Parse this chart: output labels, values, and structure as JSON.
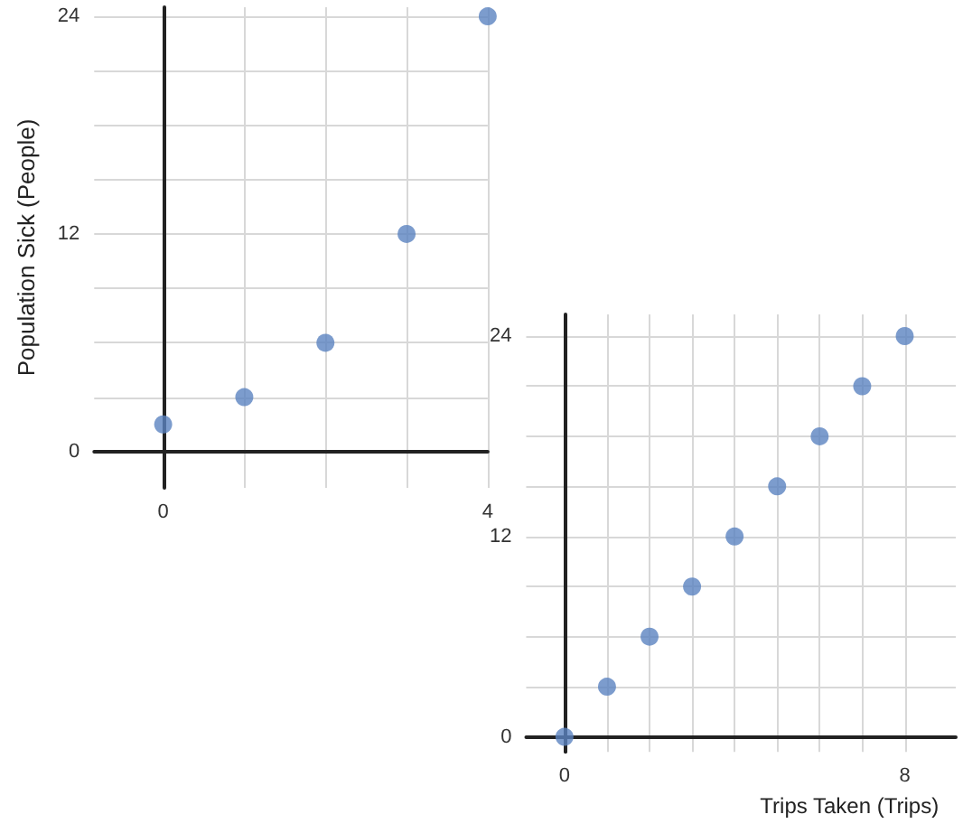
{
  "chart_data": [
    {
      "type": "scatter",
      "ylabel": "Population Sick (People)",
      "x": [
        0,
        1,
        2,
        3,
        4
      ],
      "values": [
        1.5,
        3,
        6,
        12,
        24
      ],
      "color": "#5b83c0",
      "xlim": [
        -0.85,
        4
      ],
      "ylim": [
        -2,
        24.5
      ],
      "xticks": [
        0,
        {
          "value": 1,
          "label": null
        },
        {
          "value": 2,
          "label": null
        },
        {
          "value": 3,
          "label": null
        },
        4
      ],
      "yticks": [
        0,
        {
          "value": 3,
          "label": null
        },
        {
          "value": 6,
          "label": null
        },
        {
          "value": 9,
          "label": null
        },
        12,
        {
          "value": 15,
          "label": null
        },
        {
          "value": 18,
          "label": null
        },
        {
          "value": 21,
          "label": null
        },
        24
      ],
      "grid": true,
      "marker": "circle"
    },
    {
      "type": "scatter",
      "xlabel": "Trips Taken (Trips)",
      "x": [
        0,
        1,
        2,
        3,
        4,
        5,
        6,
        7,
        8
      ],
      "values": [
        0,
        3,
        6,
        9,
        12,
        15,
        18,
        21,
        24
      ],
      "color": "#5b83c0",
      "xlim": [
        -0.9,
        9.2
      ],
      "ylim": [
        -0.9,
        25.3
      ],
      "xticks": [
        0,
        {
          "value": 1,
          "label": null
        },
        {
          "value": 2,
          "label": null
        },
        {
          "value": 3,
          "label": null
        },
        {
          "value": 4,
          "label": null
        },
        {
          "value": 5,
          "label": null
        },
        {
          "value": 6,
          "label": null
        },
        {
          "value": 7,
          "label": null
        },
        8
      ],
      "yticks": [
        0,
        {
          "value": 3,
          "label": null
        },
        {
          "value": 6,
          "label": null
        },
        {
          "value": 9,
          "label": null
        },
        12,
        {
          "value": 15,
          "label": null
        },
        {
          "value": 18,
          "label": null
        },
        {
          "value": 21,
          "label": null
        },
        24
      ],
      "grid": true,
      "marker": "circle"
    }
  ]
}
